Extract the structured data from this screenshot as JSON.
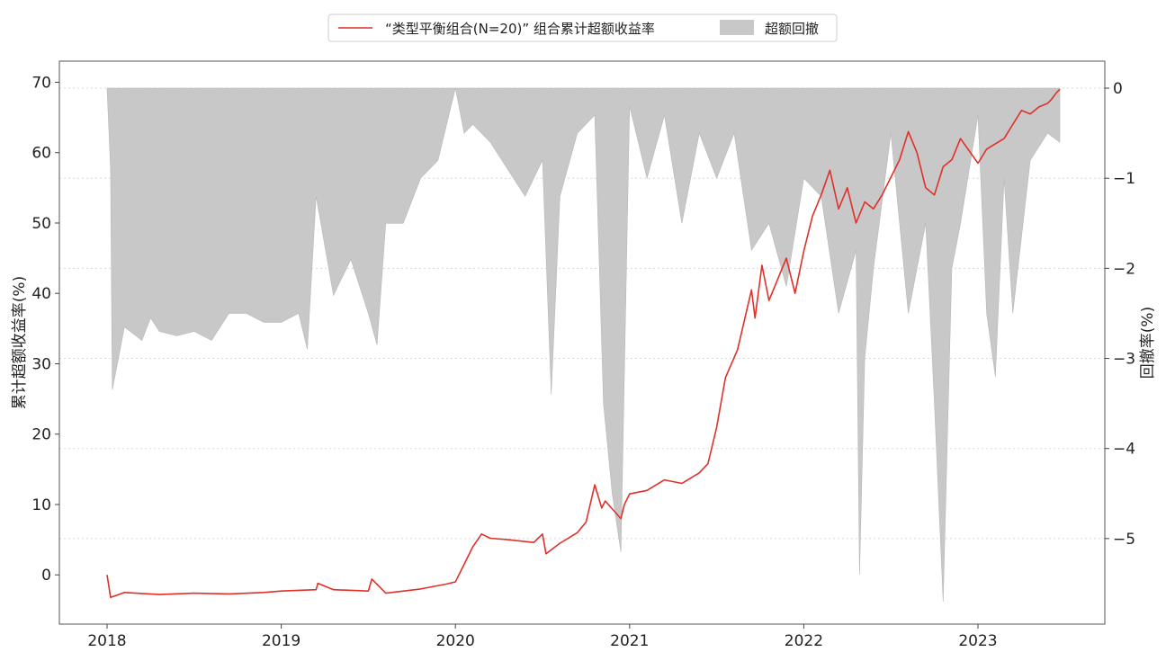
{
  "chart_data": {
    "type": "line",
    "title": "",
    "x_ticks": [
      "2018",
      "2019",
      "2020",
      "2021",
      "2022",
      "2023"
    ],
    "left_axis": {
      "label": "累计超额收益率(%)",
      "ticks": [
        0,
        10,
        20,
        30,
        40,
        50,
        60,
        70
      ],
      "range": [
        -7,
        73
      ]
    },
    "right_axis": {
      "label": "回撤率(%)",
      "ticks": [
        0,
        -1,
        -2,
        -3,
        -4,
        -5
      ],
      "range": [
        -5.95,
        0.3
      ]
    },
    "legend": {
      "position": "top-center",
      "items": [
        {
          "label": "“类型平衡组合(N=20)” 组合累计超额收益率",
          "kind": "line",
          "color": "#e0302a"
        },
        {
          "label": "超额回撤",
          "kind": "area",
          "color": "#c8c8c8"
        }
      ]
    },
    "grid": "horizontal dotted at right-axis ticks",
    "series": [
      {
        "name": "“类型平衡组合(N=20)” 组合累计超额收益率",
        "axis": "left",
        "color": "#e0302a",
        "x": [
          2018.0,
          2018.02,
          2018.1,
          2018.3,
          2018.5,
          2018.7,
          2018.9,
          2019.0,
          2019.2,
          2019.21,
          2019.3,
          2019.5,
          2019.52,
          2019.6,
          2019.8,
          2019.95,
          2020.0,
          2020.05,
          2020.1,
          2020.15,
          2020.2,
          2020.3,
          2020.45,
          2020.5,
          2020.52,
          2020.6,
          2020.7,
          2020.75,
          2020.8,
          2020.84,
          2020.86,
          2020.95,
          2020.97,
          2021.0,
          2021.1,
          2021.2,
          2021.3,
          2021.4,
          2021.45,
          2021.5,
          2021.55,
          2021.62,
          2021.7,
          2021.72,
          2021.76,
          2021.8,
          2021.85,
          2021.9,
          2021.95,
          2022.0,
          2022.05,
          2022.1,
          2022.15,
          2022.2,
          2022.25,
          2022.3,
          2022.35,
          2022.4,
          2022.45,
          2022.55,
          2022.6,
          2022.65,
          2022.7,
          2022.75,
          2022.8,
          2022.85,
          2022.9,
          2023.0,
          2023.05,
          2023.15,
          2023.2,
          2023.25,
          2023.3,
          2023.35,
          2023.4,
          2023.42,
          2023.45,
          2023.47
        ],
        "y": [
          0,
          -3.2,
          -2.5,
          -2.8,
          -2.6,
          -2.7,
          -2.5,
          -2.3,
          -2.1,
          -1.2,
          -2.1,
          -2.3,
          -0.6,
          -2.6,
          -2.0,
          -1.3,
          -1.0,
          1.5,
          4.0,
          5.8,
          5.2,
          5.0,
          4.6,
          5.8,
          3.0,
          4.5,
          6.0,
          7.5,
          12.8,
          9.5,
          10.5,
          8.0,
          10.0,
          11.5,
          12.0,
          13.5,
          13.0,
          14.5,
          15.8,
          21.0,
          28.0,
          32.0,
          40.5,
          36.5,
          44.0,
          39.0,
          42.0,
          45.0,
          40.0,
          46.0,
          51.0,
          54.0,
          57.5,
          52.0,
          55.0,
          50.0,
          53.0,
          52.0,
          54.0,
          59.0,
          63.0,
          60.0,
          55.0,
          54.0,
          58.0,
          59.0,
          62.0,
          58.5,
          60.5,
          62.0,
          64.0,
          66.0,
          65.5,
          66.5,
          67.0,
          67.5,
          68.5,
          69.0
        ]
      },
      {
        "name": "超额回撤",
        "axis": "right",
        "color": "#c8c8c8",
        "x": [
          2018.0,
          2018.02,
          2018.03,
          2018.1,
          2018.2,
          2018.25,
          2018.3,
          2018.4,
          2018.5,
          2018.6,
          2018.7,
          2018.8,
          2018.9,
          2019.0,
          2019.1,
          2019.15,
          2019.2,
          2019.3,
          2019.4,
          2019.5,
          2019.55,
          2019.6,
          2019.7,
          2019.8,
          2019.9,
          2020.0,
          2020.05,
          2020.1,
          2020.2,
          2020.3,
          2020.4,
          2020.5,
          2020.55,
          2020.6,
          2020.7,
          2020.8,
          2020.85,
          2020.9,
          2020.95,
          2021.0,
          2021.1,
          2021.2,
          2021.3,
          2021.4,
          2021.5,
          2021.6,
          2021.7,
          2021.8,
          2021.9,
          2022.0,
          2022.1,
          2022.2,
          2022.3,
          2022.32,
          2022.35,
          2022.4,
          2022.5,
          2022.6,
          2022.7,
          2022.75,
          2022.8,
          2022.85,
          2022.9,
          2023.0,
          2023.05,
          2023.1,
          2023.15,
          2023.2,
          2023.3,
          2023.4,
          2023.47
        ],
        "y": [
          0,
          -0.9,
          -3.35,
          -2.65,
          -2.8,
          -2.55,
          -2.7,
          -2.75,
          -2.7,
          -2.8,
          -2.5,
          -2.5,
          -2.6,
          -2.6,
          -2.5,
          -2.9,
          -1.2,
          -2.3,
          -1.9,
          -2.5,
          -2.85,
          -1.5,
          -1.5,
          -1.0,
          -0.8,
          0,
          -0.5,
          -0.4,
          -0.6,
          -0.9,
          -1.2,
          -0.8,
          -3.4,
          -1.2,
          -0.5,
          -0.3,
          -3.5,
          -4.5,
          -5.15,
          -0.2,
          -1.0,
          -0.3,
          -1.5,
          -0.5,
          -1.0,
          -0.5,
          -1.8,
          -1.5,
          -2.2,
          -1.0,
          -1.2,
          -2.5,
          -1.8,
          -5.4,
          -3.0,
          -2.0,
          -0.5,
          -2.5,
          -1.5,
          -3.5,
          -5.7,
          -2.0,
          -1.5,
          -0.3,
          -2.5,
          -3.2,
          -1.0,
          -2.5,
          -0.8,
          -0.5,
          -0.6
        ]
      }
    ]
  }
}
